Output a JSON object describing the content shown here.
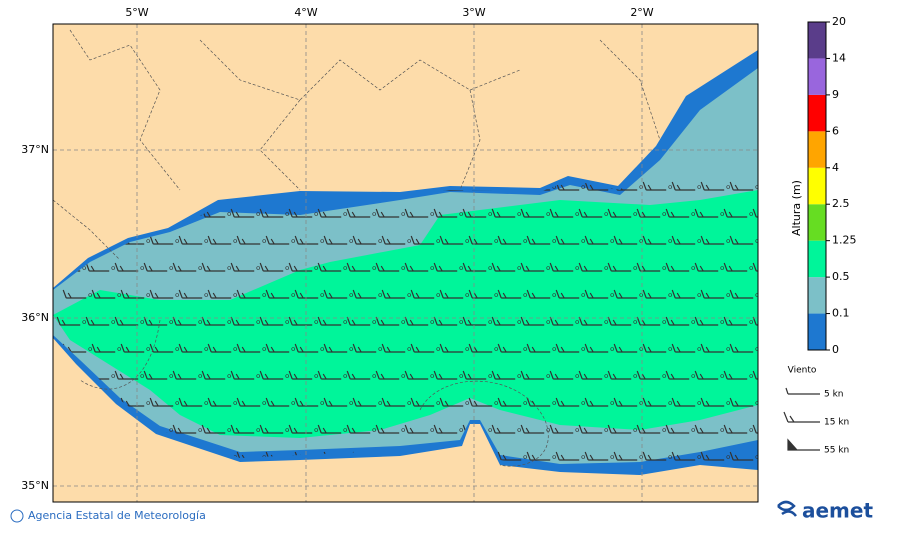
{
  "map": {
    "lon_labels": [
      "5°W",
      "4°W",
      "3°W",
      "2°W"
    ],
    "lat_labels": [
      "37°N",
      "36°N",
      "35°N"
    ]
  },
  "colorbar": {
    "title": "Altura (m)",
    "ticks": [
      0,
      0.1,
      0.5,
      1.25,
      2.5,
      4,
      6,
      9,
      14,
      20
    ],
    "colors": [
      "#1e78d0",
      "#7cc0c8",
      "#00f59a",
      "#66dd22",
      "#ffff00",
      "#ffa500",
      "#ff0000",
      "#9966dd",
      "#5a3d8a"
    ]
  },
  "wind_legend": {
    "title": "Viento",
    "items": [
      "5 kn",
      "15 kn",
      "55 kn"
    ]
  },
  "footer": {
    "credit": "Agencia Estatal de Meteorología",
    "logo": "aemet"
  }
}
